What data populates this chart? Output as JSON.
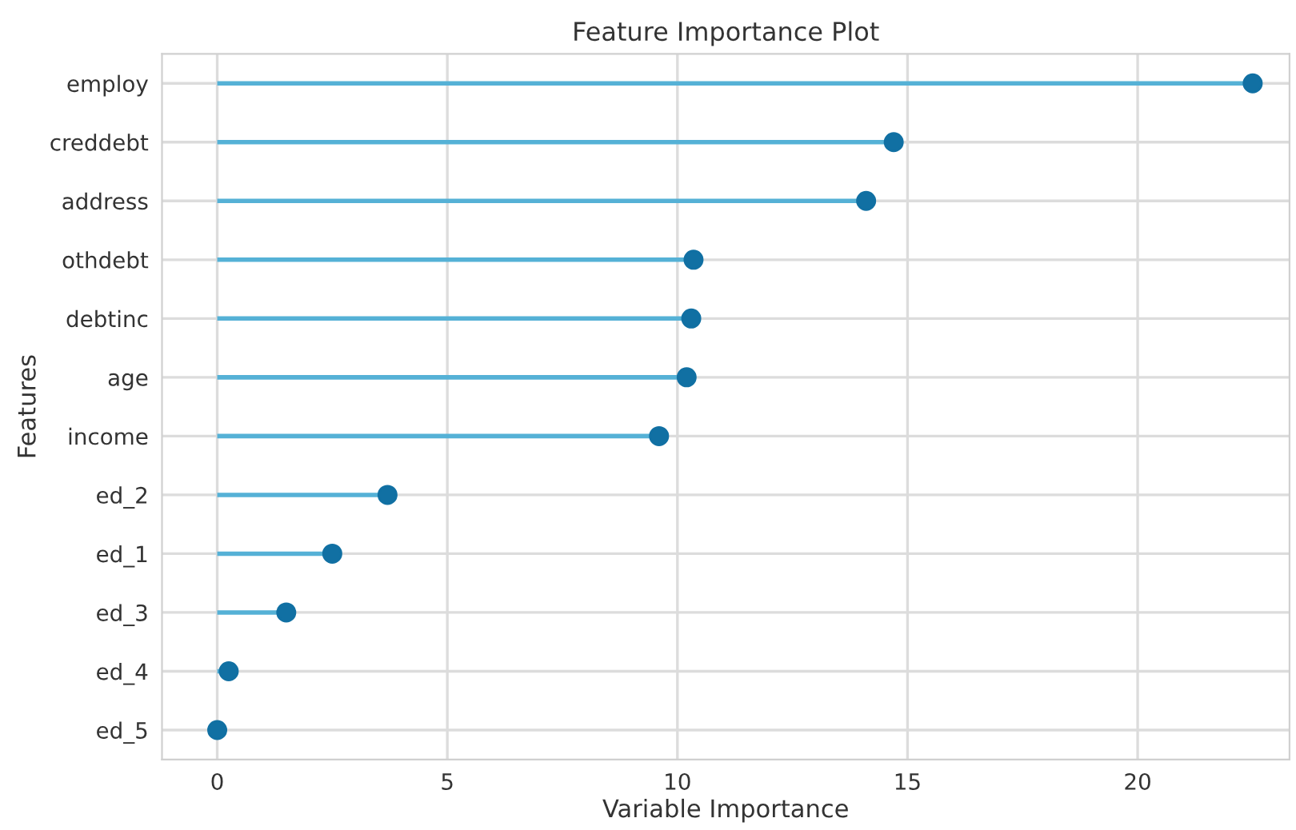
{
  "chart_data": {
    "type": "lollipop",
    "orientation": "horizontal",
    "title": "Feature Importance Plot",
    "xlabel": "Variable Importance",
    "ylabel": "Features",
    "categories": [
      "employ",
      "creddebt",
      "address",
      "othdebt",
      "debtinc",
      "age",
      "income",
      "ed_2",
      "ed_1",
      "ed_3",
      "ed_4",
      "ed_5"
    ],
    "series": [
      {
        "color": "#1170a3",
        "values": [
          22.5,
          14.7,
          14.1,
          10.35,
          10.3,
          10.2,
          9.6,
          3.7,
          2.5,
          1.5,
          0.25,
          0
        ]
      }
    ],
    "xlim": [
      -1.2,
      23.3
    ],
    "xticks": [
      0,
      5,
      10,
      15,
      20
    ],
    "grid": true,
    "marker": "circle"
  }
}
